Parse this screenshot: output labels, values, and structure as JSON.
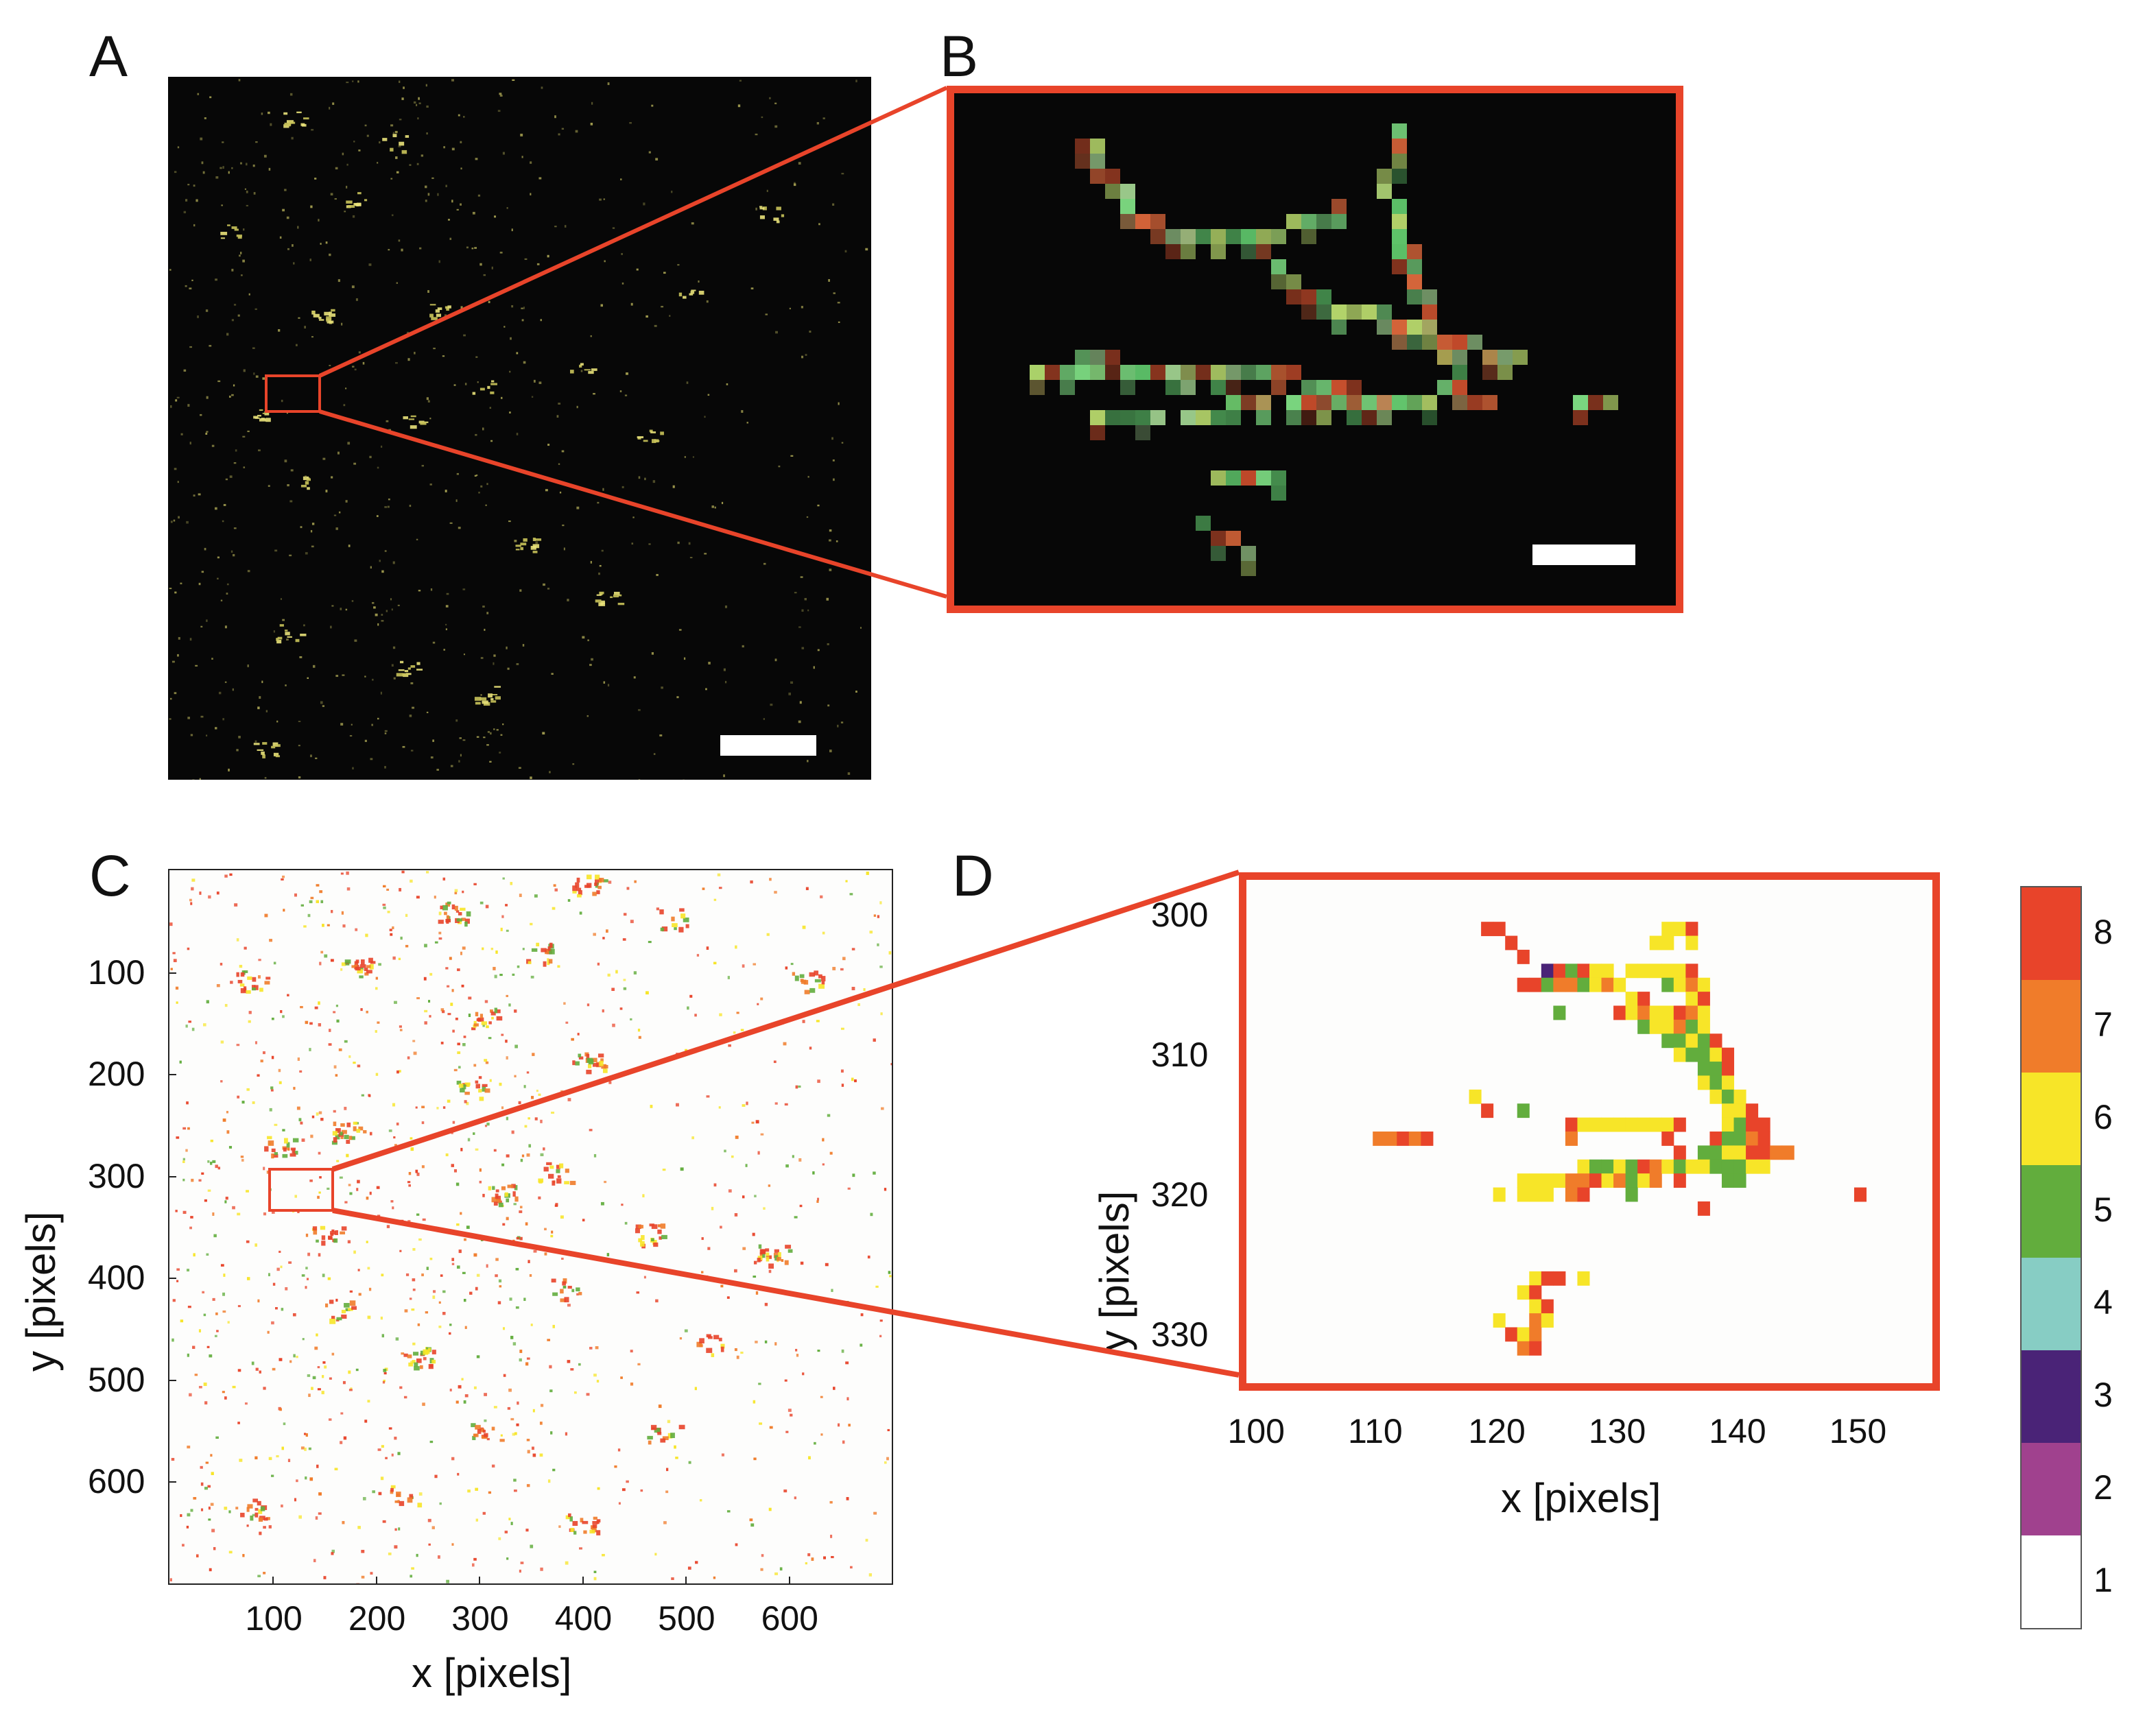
{
  "figure": {
    "panels": [
      {
        "id": "A",
        "letter": "A",
        "kind": "fluorescence-image",
        "scale_bar": true
      },
      {
        "id": "B",
        "letter": "B",
        "kind": "fluorescence-image-zoom",
        "scale_bar": true
      },
      {
        "id": "C",
        "letter": "C",
        "kind": "classified-pixel-map"
      },
      {
        "id": "D",
        "letter": "D",
        "kind": "classified-pixel-map-zoom"
      }
    ],
    "colors": {
      "highlight_red": "#e8442a",
      "class_1": "#ffffff",
      "class_2": "#a0418e",
      "class_3": "#4a2377",
      "class_4": "#87cdc4",
      "class_5": "#62ad3d",
      "class_6": "#f7e528",
      "class_7": "#f07c2a",
      "class_8": "#e8442a"
    }
  },
  "chart_data": [
    {
      "panel": "C",
      "type": "heatmap",
      "xlabel": "x [pixels]",
      "ylabel": "y [pixels]",
      "xlim": [
        0,
        700
      ],
      "ylim": [
        700,
        0
      ],
      "xticks": [
        100,
        200,
        300,
        400,
        500,
        600
      ],
      "yticks": [
        100,
        200,
        300,
        400,
        500,
        600
      ],
      "zoom_region": {
        "x": [
          100,
          160
        ],
        "y": [
          297,
          337
        ]
      }
    },
    {
      "panel": "D",
      "type": "heatmap",
      "xlabel": "x [pixels]",
      "ylabel": "y [pixels]",
      "xlim": [
        99,
        156
      ],
      "ylim": [
        297.5,
        333.5
      ],
      "xticks": [
        100,
        110,
        120,
        130,
        140,
        150
      ],
      "yticks": [
        300,
        310,
        320,
        330
      ],
      "colorbar": {
        "levels": [
          1,
          2,
          3,
          4,
          5,
          6,
          7,
          8
        ],
        "labels": [
          "1",
          "2",
          "3",
          "4",
          "5",
          "6",
          "7",
          "8"
        ]
      },
      "pixels": [
        [
          119,
          301,
          8
        ],
        [
          120,
          301,
          8
        ],
        [
          121,
          302,
          8
        ],
        [
          122,
          303,
          8
        ],
        [
          134,
          301,
          6
        ],
        [
          135,
          301,
          6
        ],
        [
          136,
          301,
          8
        ],
        [
          133,
          302,
          6
        ],
        [
          134,
          302,
          6
        ],
        [
          136,
          302,
          6
        ],
        [
          124,
          304,
          3
        ],
        [
          125,
          304,
          8
        ],
        [
          126,
          304,
          5
        ],
        [
          127,
          304,
          8
        ],
        [
          128,
          304,
          6
        ],
        [
          129,
          304,
          6
        ],
        [
          131,
          304,
          6
        ],
        [
          132,
          304,
          6
        ],
        [
          133,
          304,
          6
        ],
        [
          134,
          304,
          6
        ],
        [
          135,
          304,
          6
        ],
        [
          136,
          304,
          8
        ],
        [
          122,
          305,
          8
        ],
        [
          123,
          305,
          8
        ],
        [
          124,
          305,
          5
        ],
        [
          125,
          305,
          7
        ],
        [
          126,
          305,
          7
        ],
        [
          127,
          305,
          5
        ],
        [
          128,
          305,
          6
        ],
        [
          129,
          305,
          7
        ],
        [
          130,
          305,
          6
        ],
        [
          134,
          305,
          5
        ],
        [
          135,
          305,
          6
        ],
        [
          136,
          305,
          7
        ],
        [
          137,
          305,
          6
        ],
        [
          131,
          306,
          6
        ],
        [
          132,
          306,
          8
        ],
        [
          136,
          306,
          6
        ],
        [
          137,
          306,
          8
        ],
        [
          125,
          307,
          5
        ],
        [
          130,
          307,
          8
        ],
        [
          131,
          307,
          6
        ],
        [
          132,
          307,
          7
        ],
        [
          133,
          307,
          6
        ],
        [
          134,
          307,
          6
        ],
        [
          135,
          307,
          8
        ],
        [
          136,
          307,
          7
        ],
        [
          137,
          307,
          6
        ],
        [
          132,
          308,
          5
        ],
        [
          133,
          308,
          6
        ],
        [
          134,
          308,
          6
        ],
        [
          135,
          308,
          7
        ],
        [
          136,
          308,
          5
        ],
        [
          137,
          308,
          6
        ],
        [
          134,
          309,
          5
        ],
        [
          135,
          309,
          5
        ],
        [
          136,
          309,
          6
        ],
        [
          137,
          309,
          5
        ],
        [
          138,
          309,
          8
        ],
        [
          135,
          310,
          6
        ],
        [
          136,
          310,
          5
        ],
        [
          137,
          310,
          5
        ],
        [
          138,
          310,
          6
        ],
        [
          139,
          310,
          8
        ],
        [
          137,
          311,
          5
        ],
        [
          138,
          311,
          5
        ],
        [
          139,
          311,
          8
        ],
        [
          137,
          312,
          6
        ],
        [
          138,
          312,
          5
        ],
        [
          139,
          312,
          6
        ],
        [
          118,
          313,
          6
        ],
        [
          138,
          313,
          6
        ],
        [
          139,
          313,
          5
        ],
        [
          140,
          313,
          6
        ],
        [
          119,
          314,
          8
        ],
        [
          122,
          314,
          5
        ],
        [
          139,
          314,
          6
        ],
        [
          140,
          314,
          6
        ],
        [
          141,
          314,
          8
        ],
        [
          126,
          315,
          8
        ],
        [
          127,
          315,
          6
        ],
        [
          128,
          315,
          6
        ],
        [
          129,
          315,
          6
        ],
        [
          130,
          315,
          6
        ],
        [
          131,
          315,
          6
        ],
        [
          132,
          315,
          6
        ],
        [
          133,
          315,
          6
        ],
        [
          134,
          315,
          6
        ],
        [
          135,
          315,
          8
        ],
        [
          139,
          315,
          6
        ],
        [
          140,
          315,
          5
        ],
        [
          141,
          315,
          8
        ],
        [
          142,
          315,
          8
        ],
        [
          110,
          316,
          7
        ],
        [
          111,
          316,
          7
        ],
        [
          112,
          316,
          8
        ],
        [
          113,
          316,
          7
        ],
        [
          114,
          316,
          8
        ],
        [
          126,
          316,
          7
        ],
        [
          134,
          316,
          8
        ],
        [
          138,
          316,
          8
        ],
        [
          139,
          316,
          5
        ],
        [
          140,
          316,
          5
        ],
        [
          141,
          316,
          7
        ],
        [
          142,
          316,
          8
        ],
        [
          135,
          317,
          8
        ],
        [
          137,
          317,
          5
        ],
        [
          138,
          317,
          5
        ],
        [
          139,
          317,
          6
        ],
        [
          140,
          317,
          6
        ],
        [
          141,
          317,
          8
        ],
        [
          142,
          317,
          8
        ],
        [
          143,
          317,
          7
        ],
        [
          144,
          317,
          7
        ],
        [
          127,
          318,
          6
        ],
        [
          128,
          318,
          5
        ],
        [
          129,
          318,
          5
        ],
        [
          130,
          318,
          6
        ],
        [
          131,
          318,
          5
        ],
        [
          132,
          318,
          8
        ],
        [
          133,
          318,
          7
        ],
        [
          134,
          318,
          6
        ],
        [
          135,
          318,
          5
        ],
        [
          136,
          318,
          6
        ],
        [
          137,
          318,
          6
        ],
        [
          138,
          318,
          5
        ],
        [
          139,
          318,
          5
        ],
        [
          140,
          318,
          5
        ],
        [
          141,
          318,
          6
        ],
        [
          142,
          318,
          6
        ],
        [
          122,
          319,
          6
        ],
        [
          123,
          319,
          6
        ],
        [
          124,
          319,
          6
        ],
        [
          125,
          319,
          6
        ],
        [
          126,
          319,
          7
        ],
        [
          127,
          319,
          7
        ],
        [
          128,
          319,
          8
        ],
        [
          129,
          319,
          6
        ],
        [
          130,
          319,
          7
        ],
        [
          131,
          319,
          5
        ],
        [
          132,
          319,
          6
        ],
        [
          133,
          319,
          7
        ],
        [
          135,
          319,
          8
        ],
        [
          139,
          319,
          5
        ],
        [
          140,
          319,
          5
        ],
        [
          120,
          320,
          6
        ],
        [
          122,
          320,
          6
        ],
        [
          123,
          320,
          6
        ],
        [
          124,
          320,
          6
        ],
        [
          126,
          320,
          7
        ],
        [
          127,
          320,
          8
        ],
        [
          131,
          320,
          5
        ],
        [
          150,
          320,
          8
        ],
        [
          137,
          321,
          8
        ],
        [
          123,
          326,
          6
        ],
        [
          124,
          326,
          8
        ],
        [
          125,
          326,
          8
        ],
        [
          127,
          326,
          6
        ],
        [
          122,
          327,
          6
        ],
        [
          123,
          327,
          8
        ],
        [
          123,
          328,
          6
        ],
        [
          124,
          328,
          8
        ],
        [
          120,
          329,
          6
        ],
        [
          123,
          329,
          7
        ],
        [
          124,
          329,
          6
        ],
        [
          121,
          330,
          8
        ],
        [
          122,
          330,
          6
        ],
        [
          123,
          330,
          7
        ],
        [
          122,
          331,
          7
        ],
        [
          123,
          331,
          8
        ]
      ]
    }
  ]
}
